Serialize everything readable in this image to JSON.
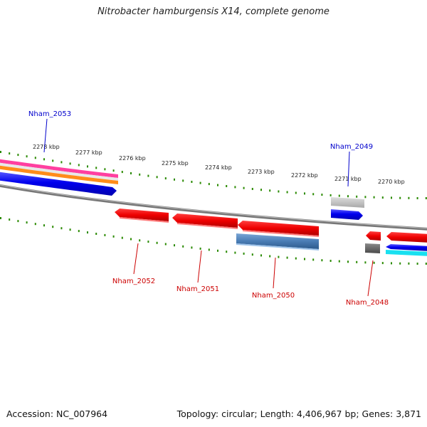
{
  "title": "Nitrobacter hamburgensis X14, complete genome",
  "footer": {
    "accession": "Accession: NC_007964",
    "summary": "Topology: circular; Length: 4,406,967 bp; Genes: 3,871"
  },
  "colors": {
    "forward_label": "#0000cc",
    "reverse_label": "#cc0000",
    "tick": "#2a8a00",
    "backbone": "#888888"
  },
  "ticks": [
    "2278 kbp",
    "2277 kbp",
    "2276 kbp",
    "2275 kbp",
    "2274 kbp",
    "2273 kbp",
    "2272 kbp",
    "2271 kbp",
    "2270 kbp"
  ],
  "gene_labels": {
    "nham_2053": "Nham_2053",
    "nham_2049": "Nham_2049",
    "nham_2052": "Nham_2052",
    "nham_2051": "Nham_2051",
    "nham_2050": "Nham_2050",
    "nham_2048": "Nham_2048"
  }
}
